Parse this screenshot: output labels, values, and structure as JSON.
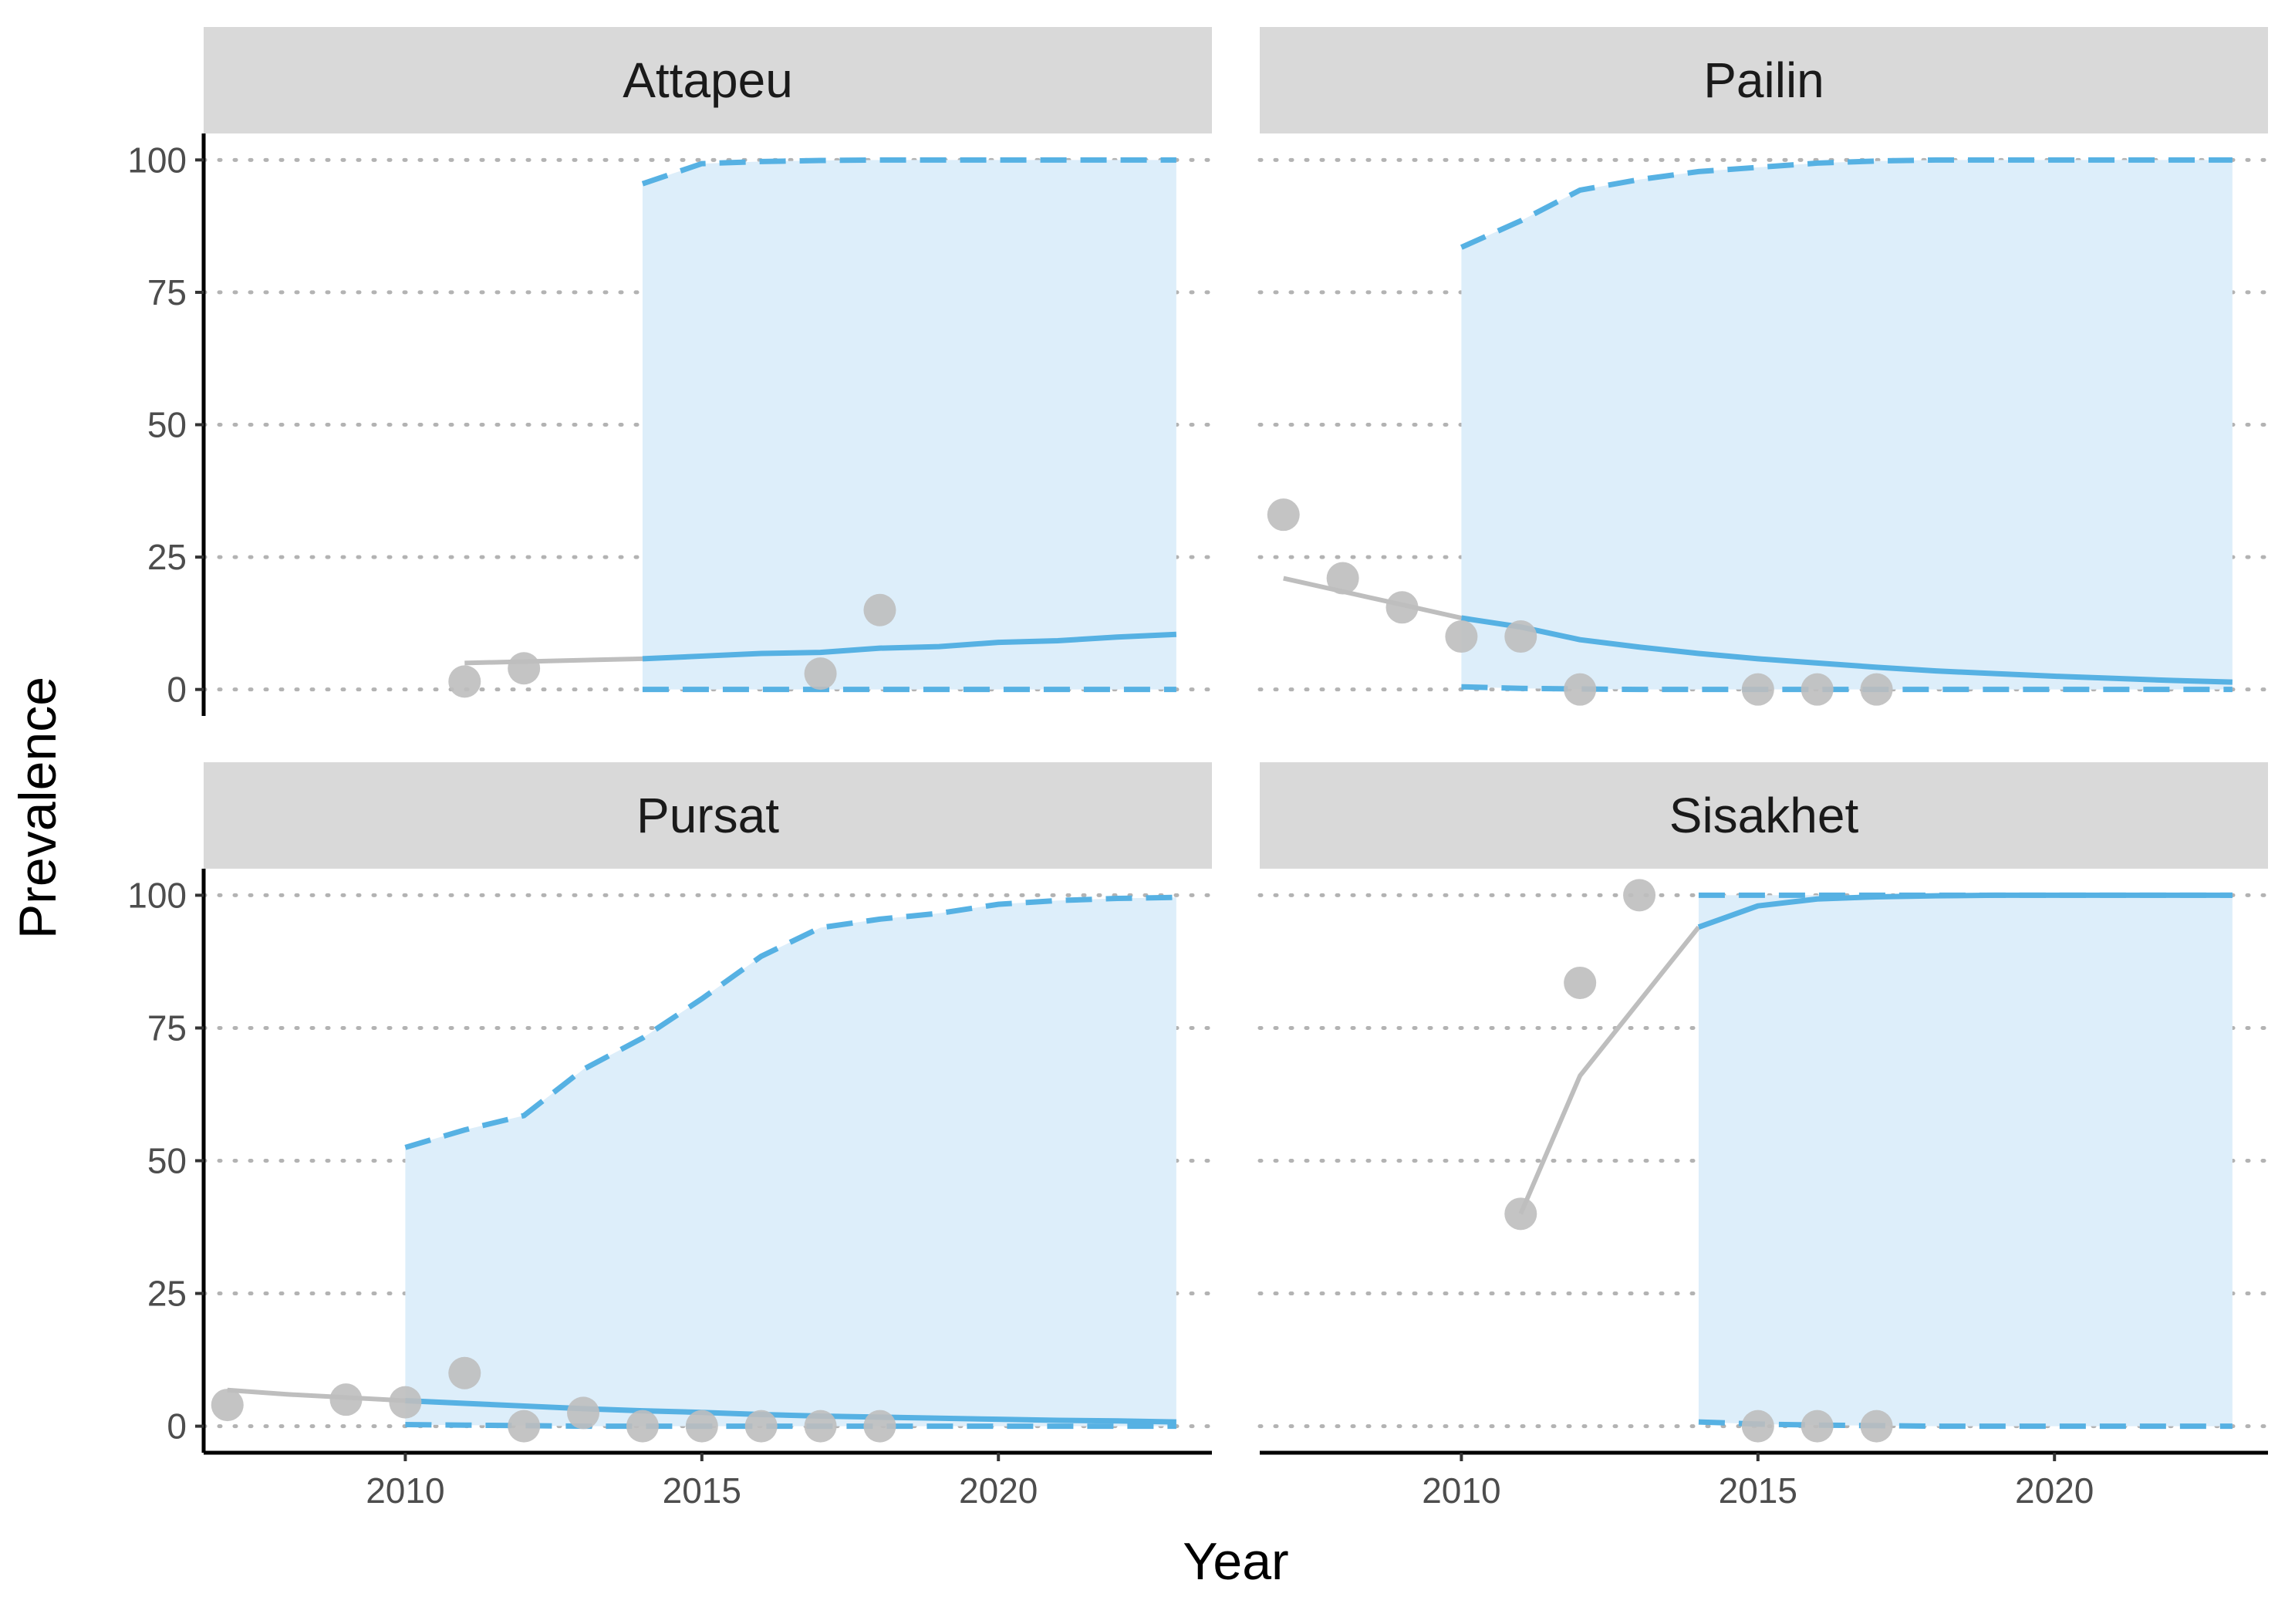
{
  "chart_data": {
    "type": "line",
    "xlabel": "Year",
    "ylabel": "Prevalence",
    "xlim": [
      2006.6,
      2023.6
    ],
    "ylim": [
      -5,
      105
    ],
    "x_ticks": [
      "2010",
      "2015",
      "2020"
    ],
    "y_ticks": [
      "0",
      "25",
      "50",
      "75",
      "100"
    ],
    "grid": "horizontal dotted",
    "colors": {
      "observed": "#bebebe",
      "projection": "#56b1e3",
      "band": "#ddeefa",
      "strip": "#d9d9d9"
    },
    "panels": [
      {
        "title": "Attapeu",
        "points": [
          [
            2011,
            1.5
          ],
          [
            2012,
            4
          ],
          [
            2017,
            3
          ],
          [
            2018,
            15
          ]
        ],
        "observed_fit": [
          [
            2011,
            5
          ],
          [
            2014,
            5.8
          ]
        ],
        "projection": {
          "x": [
            2014,
            2015,
            2016,
            2017,
            2018,
            2019,
            2020,
            2021,
            2022,
            2023
          ],
          "mean": [
            5.8,
            6.3,
            6.8,
            7,
            7.8,
            8.1,
            8.9,
            9.2,
            9.9,
            10.4
          ],
          "upper": [
            95.5,
            99.3,
            99.7,
            99.9,
            100,
            100,
            100,
            100,
            100,
            100
          ],
          "lower": [
            0,
            0,
            0,
            0,
            0,
            0,
            0,
            0,
            0,
            0
          ]
        }
      },
      {
        "title": "Pailin",
        "points": [
          [
            2007,
            33
          ],
          [
            2008,
            21
          ],
          [
            2009,
            15.5
          ],
          [
            2010,
            10
          ],
          [
            2011,
            10
          ],
          [
            2012,
            0
          ],
          [
            2015,
            0
          ],
          [
            2016,
            0
          ],
          [
            2017,
            0
          ]
        ],
        "observed_fit": [
          [
            2007,
            21
          ],
          [
            2008,
            18.5
          ],
          [
            2009,
            16
          ],
          [
            2010,
            13.5
          ]
        ],
        "projection": {
          "x": [
            2010,
            2011,
            2012,
            2013,
            2014,
            2015,
            2016,
            2017,
            2018,
            2019,
            2020,
            2021,
            2022,
            2023
          ],
          "mean": [
            13.5,
            11.8,
            9.4,
            8,
            6.8,
            5.8,
            5,
            4.2,
            3.5,
            3,
            2.5,
            2.1,
            1.7,
            1.4
          ],
          "upper": [
            83.5,
            88.5,
            94.3,
            96.3,
            97.8,
            98.6,
            99.4,
            99.8,
            100,
            100,
            100,
            100,
            100,
            100
          ],
          "lower": [
            0.5,
            0.2,
            0.1,
            0,
            0,
            0,
            0,
            0,
            0,
            0,
            0,
            0,
            0,
            0
          ]
        }
      },
      {
        "title": "Pursat",
        "points": [
          [
            2007,
            4
          ],
          [
            2009,
            5
          ],
          [
            2010,
            4.5
          ],
          [
            2011,
            10
          ],
          [
            2012,
            0
          ],
          [
            2013,
            2.5
          ],
          [
            2014,
            0
          ],
          [
            2015,
            0
          ],
          [
            2016,
            0
          ],
          [
            2017,
            0
          ],
          [
            2018,
            0
          ]
        ],
        "observed_fit": [
          [
            2007,
            6.8
          ],
          [
            2008,
            6
          ],
          [
            2009,
            5.4
          ],
          [
            2010,
            4.8
          ]
        ],
        "projection": {
          "x": [
            2010,
            2011,
            2012,
            2013,
            2014,
            2015,
            2016,
            2017,
            2018,
            2019,
            2020,
            2021,
            2022,
            2023
          ],
          "mean": [
            4.8,
            4.3,
            3.8,
            3.3,
            2.9,
            2.6,
            2.2,
            1.9,
            1.7,
            1.5,
            1.3,
            1.1,
            1,
            0.8
          ],
          "upper": [
            52.5,
            55.8,
            58.5,
            67.2,
            73.1,
            80.5,
            88.5,
            93.9,
            95.5,
            96.6,
            98.3,
            99,
            99.4,
            99.6
          ],
          "lower": [
            0.3,
            0.2,
            0.1,
            0,
            0,
            0,
            0,
            0,
            0,
            0,
            0,
            0,
            0,
            0
          ]
        }
      },
      {
        "title": "Sisakhet",
        "points": [
          [
            2011,
            40
          ],
          [
            2012,
            83.5
          ],
          [
            2013,
            100
          ],
          [
            2015,
            0
          ],
          [
            2016,
            0
          ],
          [
            2017,
            0
          ]
        ],
        "observed_fit": [
          [
            2011,
            40
          ],
          [
            2012,
            66
          ],
          [
            2013,
            80
          ],
          [
            2014,
            94
          ]
        ],
        "projection": {
          "x": [
            2014,
            2015,
            2016,
            2017,
            2018,
            2019,
            2020,
            2021,
            2022,
            2023
          ],
          "mean": [
            94,
            98,
            99.3,
            99.7,
            99.9,
            100,
            100,
            100,
            100,
            100
          ],
          "upper": [
            100,
            100,
            100,
            100,
            100,
            100,
            100,
            100,
            100,
            100
          ],
          "lower": [
            0.8,
            0.4,
            0.2,
            0.1,
            0,
            0,
            0,
            0,
            0,
            0
          ]
        }
      }
    ]
  }
}
